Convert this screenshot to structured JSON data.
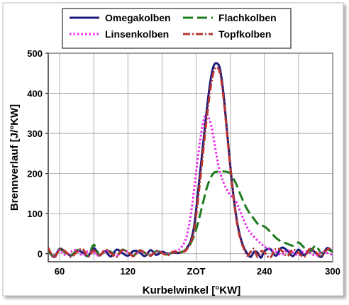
{
  "chart_data": {
    "type": "line",
    "title": "",
    "xlabel": "Kurbelwinkel [°KW]",
    "ylabel": "Brennverlauf [J/°KW]",
    "xlim": [
      50,
      300
    ],
    "ylim": [
      -20,
      500
    ],
    "x_ticks": [
      {
        "value": 60,
        "label": "60"
      },
      {
        "value": 120,
        "label": "120"
      },
      {
        "value": 180,
        "label": "ZOT"
      },
      {
        "value": 240,
        "label": "240"
      },
      {
        "value": 300,
        "label": "300"
      }
    ],
    "x_grid": [
      60,
      90,
      120,
      150,
      180,
      210,
      240,
      270,
      300
    ],
    "y_ticks": [
      0,
      100,
      200,
      300,
      400,
      500
    ],
    "grid": true,
    "legend": {
      "placement": "top",
      "columns": 2
    },
    "series": [
      {
        "name": "Omegakolben",
        "color": "#1a1a7a",
        "dash": "solid",
        "x": [
          50,
          55,
          60,
          65,
          70,
          75,
          80,
          85,
          90,
          95,
          100,
          105,
          110,
          115,
          120,
          125,
          130,
          135,
          140,
          145,
          150,
          155,
          160,
          165,
          170,
          172,
          175,
          178,
          180,
          183,
          186,
          189,
          192,
          195,
          198,
          201,
          204,
          207,
          210,
          213,
          216,
          219,
          222,
          225,
          228,
          231,
          234,
          237,
          240,
          245,
          250,
          255,
          260,
          265,
          270,
          275,
          280,
          285,
          290,
          295,
          300
        ],
        "y": [
          10,
          -8,
          12,
          5,
          -5,
          8,
          3,
          -6,
          14,
          -4,
          6,
          -7,
          10,
          2,
          -5,
          7,
          4,
          -6,
          9,
          -3,
          5,
          0,
          3,
          2,
          8,
          15,
          30,
          65,
          110,
          190,
          270,
          350,
          420,
          465,
          475,
          460,
          400,
          310,
          220,
          140,
          80,
          40,
          15,
          0,
          -8,
          5,
          3,
          -10,
          6,
          12,
          -5,
          15,
          8,
          -6,
          10,
          -4,
          12,
          2,
          -8,
          14,
          5
        ]
      },
      {
        "name": "Flachkolben",
        "color": "#1e7a1e",
        "dash": "long-dash",
        "x": [
          50,
          55,
          60,
          65,
          70,
          75,
          80,
          85,
          90,
          95,
          100,
          105,
          110,
          115,
          120,
          125,
          130,
          135,
          140,
          145,
          150,
          155,
          160,
          165,
          170,
          175,
          180,
          185,
          190,
          195,
          200,
          205,
          210,
          215,
          220,
          225,
          230,
          235,
          240,
          245,
          250,
          255,
          260,
          265,
          270,
          275,
          280,
          285,
          290,
          295,
          300
        ],
        "y": [
          5,
          -5,
          10,
          3,
          -4,
          7,
          12,
          -6,
          22,
          -3,
          8,
          5,
          -6,
          10,
          3,
          -5,
          9,
          2,
          -4,
          6,
          3,
          -2,
          4,
          3,
          8,
          25,
          60,
          115,
          170,
          200,
          205,
          205,
          200,
          175,
          140,
          110,
          90,
          72,
          68,
          55,
          40,
          30,
          25,
          20,
          28,
          15,
          5,
          20,
          2,
          10,
          5
        ]
      },
      {
        "name": "Linsenkolben",
        "color": "#ee22ee",
        "dash": "dotted",
        "x": [
          50,
          55,
          60,
          65,
          70,
          75,
          80,
          85,
          90,
          95,
          100,
          105,
          110,
          115,
          120,
          125,
          130,
          135,
          140,
          145,
          150,
          155,
          160,
          165,
          170,
          173,
          176,
          179,
          182,
          185,
          188,
          191,
          194,
          197,
          200,
          203,
          206,
          209,
          212,
          215,
          218,
          221,
          224,
          227,
          230,
          235,
          240,
          245,
          250,
          255,
          260,
          265,
          270,
          275,
          280,
          285,
          290,
          295,
          300
        ],
        "y": [
          12,
          -6,
          8,
          -3,
          5,
          9,
          -4,
          6,
          2,
          -5,
          7,
          3,
          -6,
          8,
          4,
          -5,
          6,
          2,
          -3,
          5,
          3,
          -2,
          6,
          10,
          30,
          60,
          110,
          180,
          250,
          310,
          345,
          340,
          310,
          260,
          215,
          185,
          165,
          150,
          140,
          130,
          110,
          90,
          70,
          55,
          45,
          30,
          18,
          10,
          5,
          -3,
          8,
          3,
          -4,
          6,
          2,
          -5,
          4,
          2,
          -3
        ]
      },
      {
        "name": "Topfkolben",
        "color": "#b8332e",
        "dash": "dash-dot",
        "x": [
          50,
          55,
          60,
          65,
          70,
          75,
          80,
          85,
          90,
          95,
          100,
          105,
          110,
          115,
          120,
          125,
          130,
          135,
          140,
          145,
          150,
          155,
          160,
          165,
          170,
          172,
          175,
          178,
          180,
          183,
          186,
          189,
          192,
          195,
          198,
          201,
          204,
          207,
          210,
          213,
          216,
          219,
          222,
          225,
          228,
          231,
          234,
          237,
          240,
          245,
          250,
          255,
          260,
          265,
          270,
          275,
          280,
          285,
          290,
          295,
          300
        ],
        "y": [
          15,
          -10,
          10,
          6,
          -8,
          4,
          12,
          -7,
          8,
          -5,
          10,
          2,
          -8,
          9,
          4,
          -6,
          8,
          3,
          -5,
          7,
          2,
          -4,
          5,
          3,
          6,
          12,
          25,
          55,
          95,
          170,
          250,
          330,
          400,
          450,
          465,
          450,
          390,
          305,
          215,
          135,
          75,
          35,
          12,
          -5,
          5,
          12,
          -8,
          6,
          3,
          -10,
          12,
          8,
          -6,
          10,
          2,
          -8,
          12,
          4,
          -6,
          10,
          15
        ]
      }
    ]
  }
}
